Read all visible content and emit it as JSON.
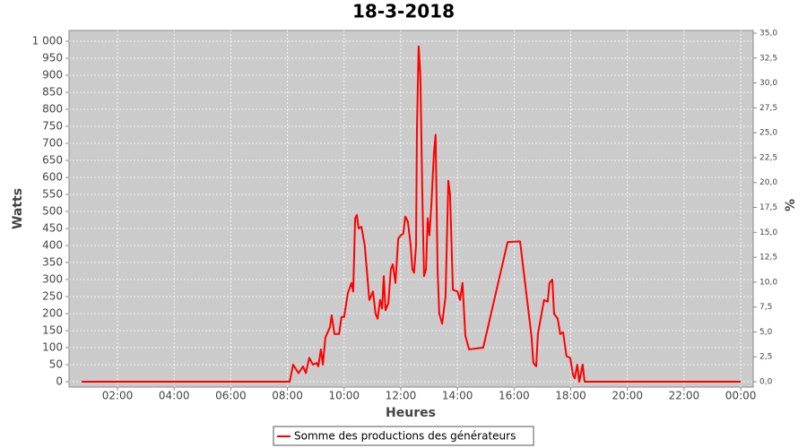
{
  "chart_data": {
    "type": "line",
    "title": "18-3-2018",
    "x_label": "Heures",
    "y_label": "Watts",
    "y2_label": "%",
    "x": [
      0.73,
      7.35,
      8.08,
      8.2,
      8.39,
      8.55,
      8.65,
      8.77,
      8.9,
      9.03,
      9.09,
      9.18,
      9.25,
      9.34,
      9.5,
      9.56,
      9.66,
      9.82,
      9.91,
      10.0,
      10.13,
      10.26,
      10.32,
      10.39,
      10.45,
      10.51,
      10.61,
      10.73,
      10.83,
      10.89,
      11.02,
      11.11,
      11.18,
      11.27,
      11.34,
      11.4,
      11.46,
      11.56,
      11.65,
      11.72,
      11.81,
      11.91,
      12.0,
      12.09,
      12.16,
      12.25,
      12.35,
      12.41,
      12.47,
      12.54,
      12.57,
      12.63,
      12.69,
      12.76,
      12.82,
      12.89,
      12.95,
      13.01,
      13.08,
      13.17,
      13.23,
      13.3,
      13.36,
      13.46,
      13.58,
      13.68,
      13.74,
      13.84,
      14.0,
      14.09,
      14.18,
      14.28,
      14.41,
      14.91,
      15.77,
      16.21,
      16.62,
      16.68,
      16.78,
      16.84,
      16.97,
      17.06,
      17.19,
      17.25,
      17.35,
      17.41,
      17.54,
      17.63,
      17.73,
      17.85,
      17.98,
      18.08,
      18.14,
      18.23,
      18.3,
      18.42,
      18.49,
      18.74,
      24.0
    ],
    "series": [
      {
        "name": "Somme des productions des  générateurs",
        "color": "#ff0000",
        "values": [
          0,
          0,
          0,
          50,
          25,
          45,
          25,
          70,
          50,
          55,
          45,
          95,
          50,
          130,
          160,
          195,
          140,
          140,
          190,
          190,
          260,
          290,
          265,
          480,
          490,
          450,
          455,
          400,
          300,
          240,
          265,
          200,
          185,
          240,
          215,
          310,
          210,
          230,
          330,
          345,
          290,
          420,
          430,
          435,
          485,
          470,
          400,
          330,
          320,
          400,
          740,
          985,
          900,
          550,
          310,
          330,
          480,
          430,
          520,
          670,
          725,
          330,
          200,
          170,
          250,
          590,
          550,
          270,
          265,
          240,
          290,
          135,
          95,
          100,
          410,
          412,
          130,
          55,
          45,
          140,
          200,
          240,
          235,
          290,
          300,
          200,
          185,
          140,
          145,
          75,
          70,
          20,
          10,
          50,
          0,
          50,
          0,
          0,
          0
        ]
      }
    ],
    "xlim": [
      0.29,
      24.44
    ],
    "xticks": [
      {
        "value": 2,
        "label": "02:00"
      },
      {
        "value": 4,
        "label": "04:00"
      },
      {
        "value": 6,
        "label": "06:00"
      },
      {
        "value": 8,
        "label": "08:00"
      },
      {
        "value": 10,
        "label": "10:00"
      },
      {
        "value": 12,
        "label": "12:00"
      },
      {
        "value": 14,
        "label": "14:00"
      },
      {
        "value": 16,
        "label": "16:00"
      },
      {
        "value": 18,
        "label": "18:00"
      },
      {
        "value": 20,
        "label": "20:00"
      },
      {
        "value": 22,
        "label": "22:00"
      },
      {
        "value": 24,
        "label": "00:00"
      }
    ],
    "ylim": [
      -15.8,
      1031.6
    ],
    "yticks": [
      0,
      50,
      100,
      150,
      200,
      250,
      300,
      350,
      400,
      450,
      500,
      550,
      600,
      650,
      700,
      750,
      800,
      850,
      900,
      950,
      {
        "value": 1000,
        "label": "1 000"
      }
    ],
    "y2lim": [
      -0.54,
      35.27
    ],
    "y2ticks": [
      {
        "value": 0,
        "label": "0,0"
      },
      {
        "value": 2.5,
        "label": "2,5"
      },
      {
        "value": 5,
        "label": "5,0"
      },
      {
        "value": 7.5,
        "label": "7,5"
      },
      {
        "value": 10,
        "label": "10,0"
      },
      {
        "value": 12.5,
        "label": "12,5"
      },
      {
        "value": 15,
        "label": "15,0"
      },
      {
        "value": 17.5,
        "label": "17,5"
      },
      {
        "value": 20,
        "label": "20,0"
      },
      {
        "value": 22.5,
        "label": "22,5"
      },
      {
        "value": 25,
        "label": "25,0"
      },
      {
        "value": 27.5,
        "label": "27,5"
      },
      {
        "value": 30,
        "label": "30,0"
      },
      {
        "value": 32.5,
        "label": "32,5"
      },
      {
        "value": 35,
        "label": "35,0"
      }
    ],
    "grid": true
  }
}
